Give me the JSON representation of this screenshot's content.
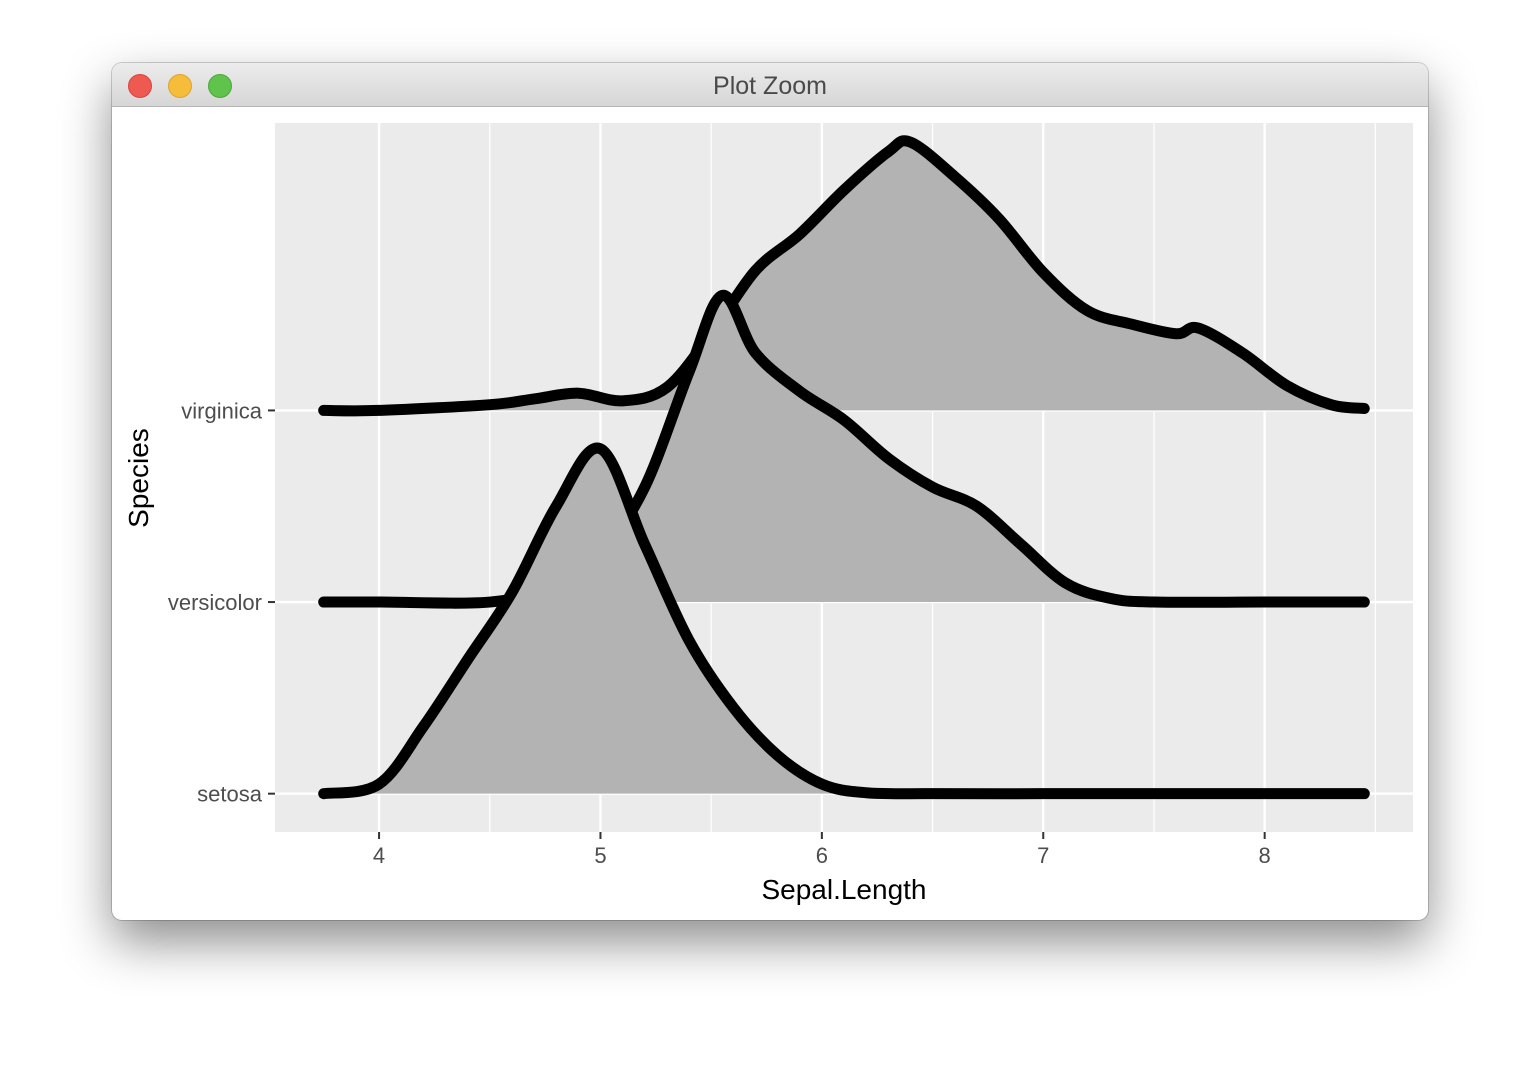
{
  "window": {
    "title": "Plot Zoom",
    "buttons": [
      "close",
      "minimize",
      "zoom"
    ]
  },
  "colors": {
    "panel_bg": "#ebebeb",
    "gridline": "#ffffff",
    "ridge_fill": "#b3b3b3",
    "ridge_line": "#000000",
    "tick_text": "#4d4d4d",
    "axis_title": "#000000"
  },
  "chart_data": {
    "type": "ridgeline",
    "xlabel": "Sepal.Length",
    "ylabel": "Species",
    "xlim": [
      3.53,
      8.67
    ],
    "x_ticks": [
      4,
      5,
      6,
      7,
      8
    ],
    "x_tick_labels": [
      "4",
      "5",
      "6",
      "7",
      "8"
    ],
    "categories": [
      "setosa",
      "versicolor",
      "virginica"
    ],
    "ylim": [
      0.8,
      4.5
    ],
    "grid": true,
    "legend": "none",
    "series": [
      {
        "name": "setosa",
        "baseline": 1,
        "x": [
          3.75,
          4.0,
          4.2,
          4.4,
          4.6,
          4.8,
          5.0,
          5.2,
          5.4,
          5.6,
          5.8,
          6.0,
          6.2,
          6.5,
          7.0,
          7.5,
          8.0,
          8.45
        ],
        "height": [
          0.0,
          0.05,
          0.35,
          0.7,
          1.05,
          1.5,
          1.8,
          1.3,
          0.8,
          0.45,
          0.2,
          0.05,
          0.005,
          0.0,
          0.0,
          0.0,
          0.0,
          0.0
        ]
      },
      {
        "name": "versicolor",
        "baseline": 2,
        "x": [
          3.75,
          4.0,
          4.5,
          4.8,
          5.0,
          5.2,
          5.4,
          5.55,
          5.7,
          5.9,
          6.1,
          6.3,
          6.5,
          6.7,
          6.9,
          7.1,
          7.3,
          7.5,
          8.0,
          8.45
        ],
        "height": [
          0.0,
          0.0,
          0.0,
          0.08,
          0.25,
          0.6,
          1.2,
          1.6,
          1.3,
          1.1,
          0.95,
          0.75,
          0.6,
          0.5,
          0.3,
          0.1,
          0.02,
          0.0,
          0.0,
          0.0
        ]
      },
      {
        "name": "virginica",
        "baseline": 3,
        "x": [
          3.75,
          4.0,
          4.5,
          4.7,
          4.9,
          5.1,
          5.3,
          5.5,
          5.7,
          5.9,
          6.1,
          6.3,
          6.4,
          6.6,
          6.8,
          7.0,
          7.2,
          7.4,
          7.6,
          7.7,
          7.9,
          8.1,
          8.3,
          8.45
        ],
        "height": [
          0.0,
          0.0,
          0.03,
          0.06,
          0.09,
          0.05,
          0.12,
          0.4,
          0.73,
          0.92,
          1.15,
          1.35,
          1.4,
          1.22,
          1.0,
          0.72,
          0.52,
          0.45,
          0.4,
          0.43,
          0.3,
          0.13,
          0.03,
          0.01
        ]
      }
    ]
  }
}
